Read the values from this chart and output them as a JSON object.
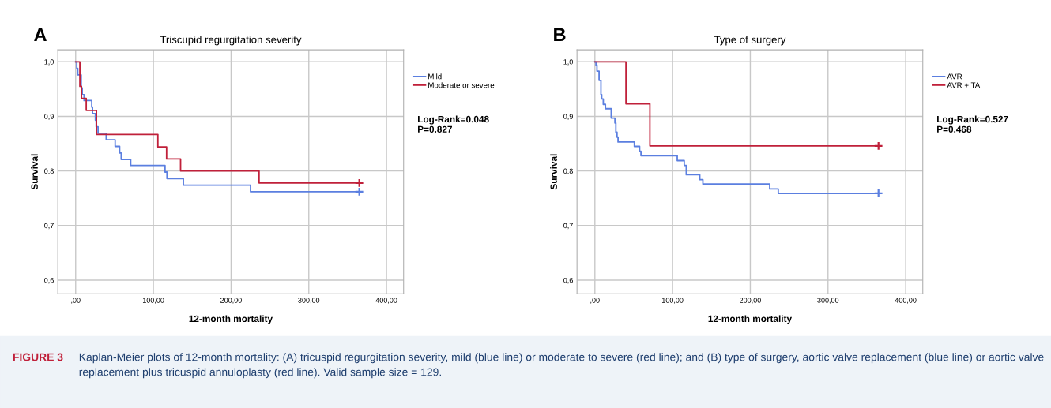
{
  "chart_data": [
    {
      "type": "step",
      "title": "Triscupid regurgitation severity",
      "xlabel": "12-month mortality",
      "ylabel": "Survival",
      "legend": "right",
      "grid": true,
      "xlim": [
        -23,
        422
      ],
      "ylim": [
        0.575,
        1.022
      ],
      "xticks": [
        {
          "value": 0,
          "label": ",00"
        },
        {
          "value": 100,
          "label": "100,00"
        },
        {
          "value": 200,
          "label": "200,00"
        },
        {
          "value": 300,
          "label": "300,00"
        },
        {
          "value": 400,
          "label": "400,00"
        }
      ],
      "yticks": [
        {
          "value": 0.6,
          "label": "0,6"
        },
        {
          "value": 0.7,
          "label": "0,7"
        },
        {
          "value": 0.8,
          "label": "0,8"
        },
        {
          "value": 0.9,
          "label": "0,9"
        },
        {
          "value": 1.0,
          "label": "1,0"
        }
      ],
      "annotations": [
        "A",
        "Log-Rank=0.048\nP=0.827",
        "FIGURE 3",
        "Kaplan-Meier plots of 12-month mortality: (A) tricuspid regurgitation severity, mild (blue line) or moderate to severe (red line); and (B) type of surgery, aortic valve replacement (blue line) or aortic valve replacement plus tricuspid annuloplasty (red line). Valid sample size = 129."
      ],
      "series": [
        {
          "name": "Mild",
          "color": "#5b7fe0",
          "x": [
            0,
            1.4,
            2.7,
            7.1,
            8.5,
            10.8,
            20.7,
            21.7,
            25.4,
            26.4,
            28.8,
            39.3,
            50.8,
            56.6,
            58.6,
            70.8,
            115,
            117.5,
            138.6,
            225,
            365
          ],
          "values": [
            1.0,
            0.988,
            0.976,
            0.952,
            0.94,
            0.929,
            0.917,
            0.905,
            0.893,
            0.881,
            0.869,
            0.857,
            0.845,
            0.833,
            0.821,
            0.81,
            0.798,
            0.786,
            0.774,
            0.762,
            0.762
          ]
        },
        {
          "name": "Moderate or severe",
          "color": "#c0203a",
          "x": [
            0,
            5.4,
            7.5,
            13.6,
            26.8,
            105.8,
            117,
            135,
            236,
            365
          ],
          "values": [
            1.0,
            0.955,
            0.933,
            0.911,
            0.867,
            0.844,
            0.822,
            0.8,
            0.778,
            0.778
          ]
        },
        {
          "type": "scatter",
          "marker": "cross",
          "color": "#5b7fe0",
          "x": [
            365
          ],
          "values": [
            0.762
          ]
        },
        {
          "type": "scatter",
          "marker": "cross",
          "color": "#c0203a",
          "x": [
            365
          ],
          "values": [
            0.778
          ]
        }
      ]
    },
    {
      "type": "step",
      "title": "Type of surgery",
      "xlabel": "12-month mortality",
      "ylabel": "Survival",
      "legend": "right",
      "grid": true,
      "xlim": [
        -23,
        422
      ],
      "ylim": [
        0.575,
        1.022
      ],
      "xticks": [
        {
          "value": 0,
          "label": ",00"
        },
        {
          "value": 100,
          "label": "100,00"
        },
        {
          "value": 200,
          "label": "200,00"
        },
        {
          "value": 300,
          "label": "300,00"
        },
        {
          "value": 400,
          "label": "400,00"
        }
      ],
      "yticks": [
        {
          "value": 0.6,
          "label": "0,6"
        },
        {
          "value": 0.7,
          "label": "0,7"
        },
        {
          "value": 0.8,
          "label": "0,8"
        },
        {
          "value": 0.9,
          "label": "0,9"
        },
        {
          "value": 1.0,
          "label": "1,0"
        }
      ],
      "annotations": [
        "B",
        "Log-Rank=0.527\nP=0.468"
      ],
      "series": [
        {
          "name": "AVR",
          "color": "#5b7fe0",
          "x": [
            0,
            1.4,
            2.7,
            5.4,
            7.8,
            8.8,
            10.8,
            13.6,
            21,
            25.8,
            27,
            28.5,
            29.8,
            50.8,
            57.6,
            59.3,
            106,
            115,
            117.6,
            135,
            139,
            225,
            236,
            365
          ],
          "values": [
            1.0,
            0.994,
            0.983,
            0.966,
            0.94,
            0.932,
            0.922,
            0.914,
            0.897,
            0.888,
            0.871,
            0.862,
            0.853,
            0.845,
            0.836,
            0.828,
            0.819,
            0.81,
            0.793,
            0.784,
            0.776,
            0.767,
            0.759,
            0.759
          ]
        },
        {
          "name": "AVR + TA",
          "color": "#c0203a",
          "x": [
            0,
            40,
            70.8,
            365
          ],
          "values": [
            1.0,
            0.923,
            0.846,
            0.846
          ]
        },
        {
          "type": "scatter",
          "marker": "cross",
          "color": "#5b7fe0",
          "x": [
            365
          ],
          "values": [
            0.759
          ]
        },
        {
          "type": "scatter",
          "marker": "cross",
          "color": "#c0203a",
          "x": [
            365
          ],
          "values": [
            0.846
          ]
        }
      ]
    }
  ]
}
